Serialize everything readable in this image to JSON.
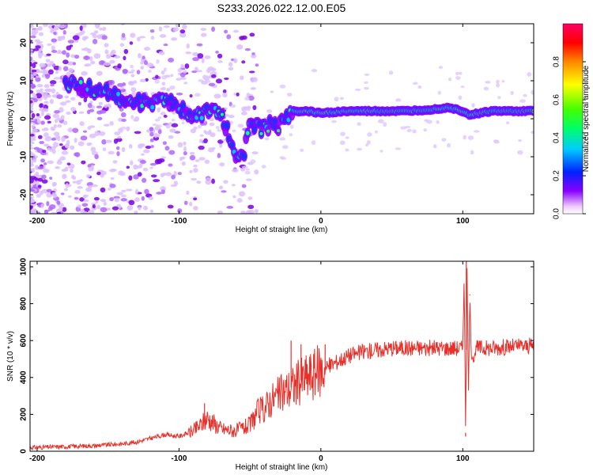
{
  "title": "S233.2026.022.12.00.E05",
  "chart_data": [
    {
      "type": "heatmap",
      "xlabel": "Height of straight line (km)",
      "ylabel": "Frequency (Hz)",
      "xlim": [
        -205,
        150
      ],
      "ylim": [
        -25,
        25
      ],
      "x_ticks": [
        -200,
        -100,
        0,
        100
      ],
      "y_ticks": [
        -20,
        -10,
        0,
        10,
        20
      ],
      "ridge": {
        "x": [
          -175,
          -165,
          -150,
          -140,
          -125,
          -110,
          -100,
          -90,
          -80,
          -70,
          -60,
          -55,
          -50,
          -45,
          -40,
          -35,
          -30,
          -25,
          -20,
          -10,
          0,
          20,
          40,
          60,
          80,
          90,
          100,
          105,
          120,
          150
        ],
        "freq": [
          9,
          8,
          7,
          5,
          4,
          5,
          3,
          1,
          2,
          1,
          -9,
          -11,
          -1,
          -2,
          -3,
          -1,
          -2,
          0,
          2,
          2,
          1.5,
          2,
          2,
          2,
          2.5,
          3,
          2,
          1,
          2,
          2
        ]
      },
      "colorbar": {
        "label": "Normalized spectral amplitude",
        "ticks": [
          "0.0",
          "0.2",
          "0.4",
          "0.6",
          "0.8"
        ],
        "range": [
          0,
          1
        ]
      }
    },
    {
      "type": "line",
      "xlabel": "Height of straight line (km)",
      "ylabel": "SNR (10 * v/v)",
      "xlim": [
        -205,
        150
      ],
      "ylim": [
        0,
        1030
      ],
      "x_ticks": [
        -200,
        -100,
        0,
        100
      ],
      "y_ticks": [
        0,
        200,
        400,
        600,
        800,
        1000
      ],
      "series": [
        {
          "name": "SNR",
          "color": "#e8302a",
          "x": [
            -205,
            -180,
            -160,
            -140,
            -130,
            -120,
            -110,
            -100,
            -90,
            -85,
            -80,
            -75,
            -70,
            -60,
            -50,
            -45,
            -40,
            -35,
            -30,
            -25,
            -20,
            -15,
            -10,
            -5,
            0,
            5,
            10,
            20,
            30,
            40,
            50,
            60,
            70,
            80,
            90,
            100,
            101,
            102,
            103,
            104,
            105,
            106,
            110,
            120,
            130,
            140,
            150
          ],
          "y": [
            20,
            25,
            30,
            40,
            50,
            70,
            90,
            80,
            110,
            140,
            180,
            150,
            120,
            110,
            140,
            210,
            230,
            280,
            300,
            330,
            350,
            380,
            400,
            420,
            440,
            460,
            480,
            520,
            540,
            550,
            560,
            560,
            560,
            560,
            560,
            560,
            950,
            100,
            1000,
            300,
            850,
            500,
            560,
            560,
            565,
            570,
            570
          ],
          "spikes": [
            {
              "x": -82,
              "y": 260
            },
            {
              "x": -21,
              "y": 600
            },
            {
              "x": -14,
              "y": 580
            },
            {
              "x": 3,
              "y": 580
            },
            {
              "x": 102.5,
              "y": 1030
            },
            {
              "x": 102,
              "y": 80
            },
            {
              "x": 105,
              "y": 845
            }
          ]
        }
      ]
    }
  ]
}
